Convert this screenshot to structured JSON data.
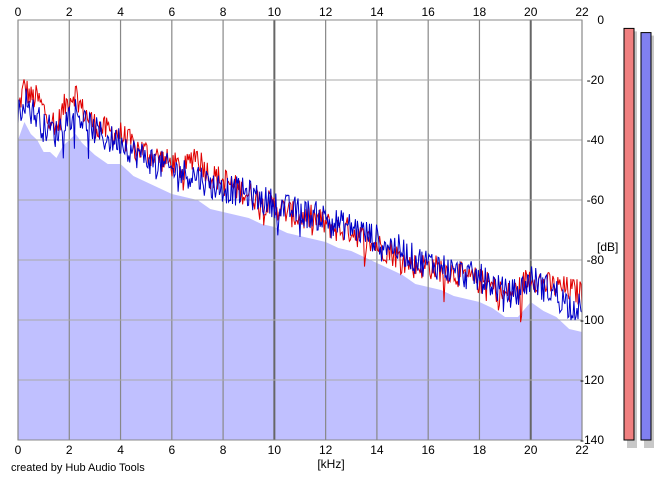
{
  "chart_data": {
    "type": "area",
    "xlabel": "[kHz]",
    "ylabel": "[dB]",
    "xlim": [
      0,
      22
    ],
    "ylim": [
      -140,
      0
    ],
    "x_ticks": [
      0,
      2,
      4,
      6,
      8,
      10,
      12,
      14,
      16,
      18,
      20,
      22
    ],
    "y_ticks": [
      0,
      -20,
      -40,
      -60,
      -80,
      -100,
      -120,
      -140
    ],
    "grid": true,
    "colors": {
      "fill": "#c0c0ff",
      "red_series": "#e00000",
      "blue_series": "#0000c8",
      "grid": "#aaaaaa",
      "grid_major": "#888888",
      "meter_left": "#f08080",
      "meter_right": "#8080f0"
    },
    "series": [
      {
        "color": "#e00000",
        "x": [
          0,
          0.25,
          0.5,
          0.75,
          1,
          1.25,
          1.5,
          1.75,
          2,
          2.25,
          2.5,
          3,
          3.5,
          4,
          4.5,
          5,
          5.5,
          6,
          6.5,
          6.9,
          7.5,
          8,
          8.5,
          9,
          9.5,
          10,
          10.5,
          11,
          11.5,
          12,
          12.5,
          13,
          13.5,
          14,
          14.5,
          15,
          15.5,
          16,
          16.5,
          17,
          17.5,
          18,
          18.5,
          19,
          19.5,
          20,
          20.5,
          21,
          21.5,
          22
        ],
        "values": [
          -30,
          -22,
          -26,
          -26,
          -30,
          -32,
          -36,
          -30,
          -26,
          -24,
          -30,
          -35,
          -37,
          -38,
          -42,
          -44,
          -46,
          -48,
          -50,
          -44,
          -52,
          -53,
          -56,
          -58,
          -60,
          -62,
          -64,
          -66,
          -66,
          -68,
          -70,
          -70,
          -73,
          -75,
          -77,
          -80,
          -82,
          -82,
          -83,
          -84,
          -86,
          -87,
          -89,
          -92,
          -90,
          -85,
          -88,
          -89,
          -90,
          -91
        ]
      },
      {
        "color": "#0000c8",
        "x": [
          0,
          0.25,
          0.5,
          0.75,
          1,
          1.25,
          1.5,
          1.75,
          2,
          2.25,
          2.5,
          3,
          3.5,
          4,
          4.5,
          5,
          5.5,
          6,
          6.5,
          7,
          7.5,
          8,
          8.5,
          9,
          9.5,
          10,
          10.5,
          11,
          11.5,
          12,
          12.5,
          13,
          13.5,
          14,
          14.5,
          15,
          15.5,
          16,
          16.5,
          17,
          17.5,
          18,
          18.5,
          19,
          19.5,
          20,
          20.5,
          21,
          21.5,
          22
        ],
        "values": [
          -32,
          -26,
          -30,
          -32,
          -36,
          -36,
          -38,
          -34,
          -32,
          -30,
          -33,
          -37,
          -40,
          -40,
          -44,
          -46,
          -48,
          -50,
          -51,
          -52,
          -55,
          -56,
          -57,
          -58,
          -60,
          -61,
          -63,
          -64,
          -65,
          -66,
          -68,
          -69,
          -71,
          -73,
          -75,
          -77,
          -80,
          -81,
          -82,
          -84,
          -85,
          -86,
          -88,
          -91,
          -91,
          -86,
          -89,
          -91,
          -95,
          -96
        ]
      }
    ],
    "meters": [
      {
        "level": 0.98,
        "color": "#f08080"
      },
      {
        "level": 0.97,
        "color": "#8080f0"
      }
    ]
  },
  "footer": {
    "credit": "created by Hub Audio Tools"
  }
}
